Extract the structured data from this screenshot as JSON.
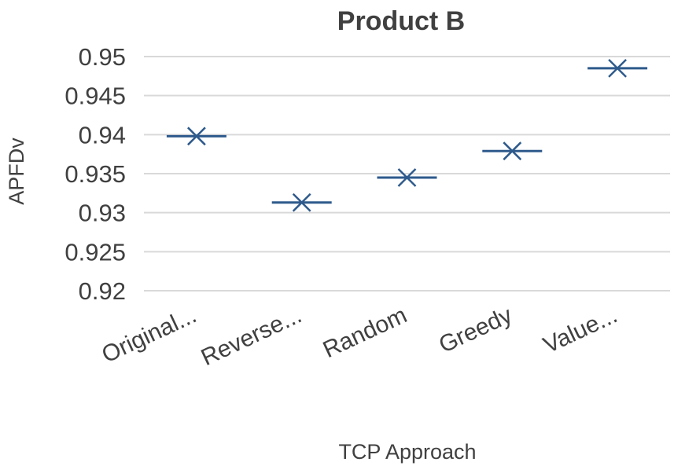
{
  "chart_data": {
    "type": "scatter",
    "title": "Product B",
    "xlabel": "TCP Approach",
    "ylabel": "APFDv",
    "categories": [
      "Original...",
      "Reverse...",
      "Random",
      "Greedy",
      "Value..."
    ],
    "series": [
      {
        "values": [
          0.9398,
          0.9313,
          0.9345,
          0.9379,
          0.9485
        ],
        "marker": "cross-with-dash",
        "color": "#2e5a8c"
      }
    ],
    "ylim": [
      0.92,
      0.95
    ],
    "yticks": [
      0.92,
      0.925,
      0.93,
      0.935,
      0.94,
      0.945,
      0.95
    ],
    "ytick_labels": [
      "0.92",
      "0.925",
      "0.93",
      "0.935",
      "0.94",
      "0.945",
      "0.95"
    ],
    "grid": true,
    "gridline_color": "#d9d9d9",
    "legend": "none"
  }
}
